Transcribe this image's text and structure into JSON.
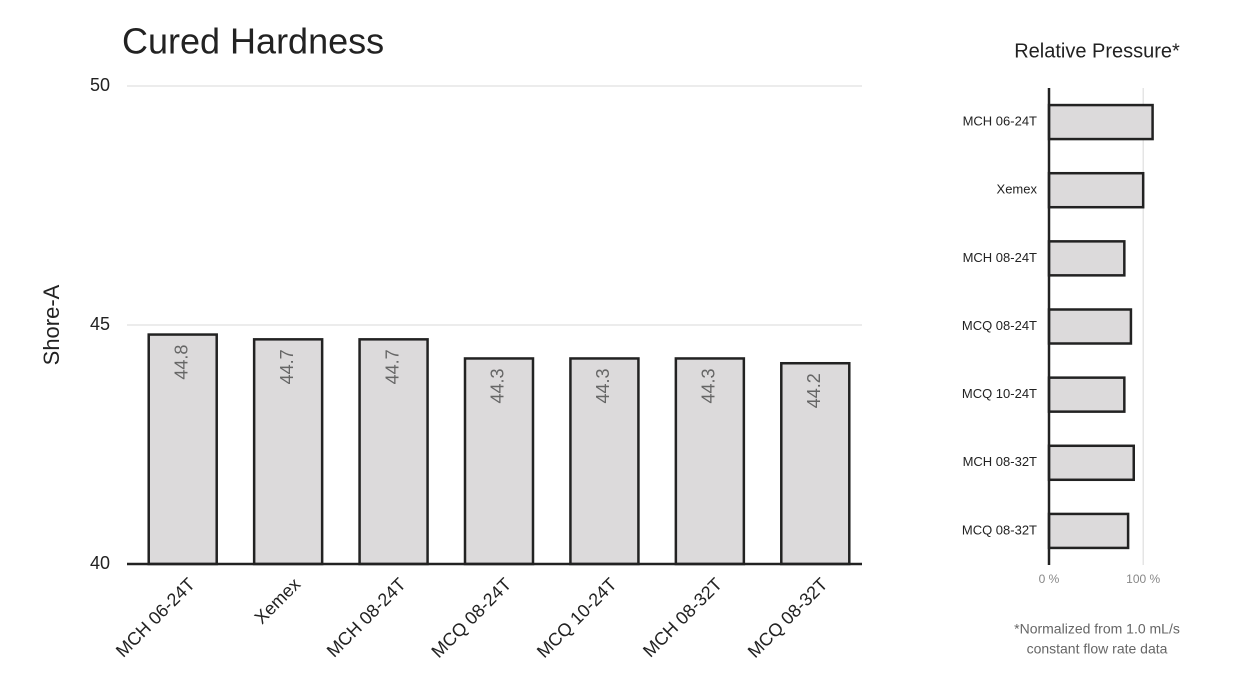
{
  "chart_data": [
    {
      "type": "bar",
      "title": "Cured Hardness",
      "y_label": "Shore-A",
      "categories": [
        "MCH 06-24T",
        "Xemex",
        "MCH 08-24T",
        "MCQ 08-24T",
        "MCQ 10-24T",
        "MCH 08-32T",
        "MCQ 08-32T"
      ],
      "values": [
        44.8,
        44.7,
        44.7,
        44.3,
        44.3,
        44.3,
        44.2
      ],
      "color": "#dcdadb",
      "ylim": [
        40,
        50
      ],
      "yticks": [
        40,
        45,
        50
      ],
      "grid": true
    },
    {
      "type": "barh",
      "title": "Relative Pressure*",
      "categories": [
        "MCH 06-24T",
        "Xemex",
        "MCH 08-24T",
        "MCQ 08-24T",
        "MCQ 10-24T",
        "MCH 08-32T",
        "MCQ 08-32T"
      ],
      "values": [
        110,
        100,
        80,
        87,
        80,
        90,
        84
      ],
      "color": "#dcdadb",
      "xlim": [
        0,
        120
      ],
      "xticks": [
        {
          "value": 0,
          "label": "0 %"
        },
        {
          "value": 100,
          "label": "100 %"
        }
      ],
      "grid": true,
      "note_lines": [
        "*Normalized from 1.0 mL/s",
        "constant flow rate data"
      ]
    }
  ]
}
